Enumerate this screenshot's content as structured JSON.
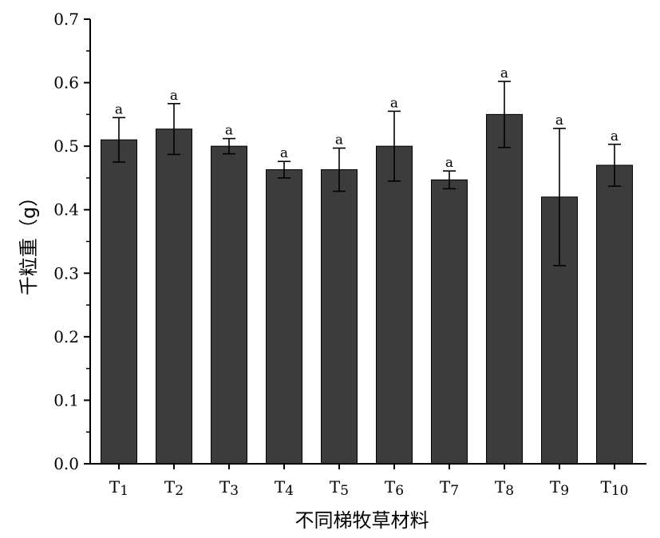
{
  "chart_data": {
    "type": "bar",
    "xlabel": "不同梯牧草材料",
    "ylabel": "千粒重（g）",
    "ylim": [
      0,
      0.7
    ],
    "ytick_step": 0.1,
    "ytick_minor_step": 0.05,
    "grid": false,
    "legend": "none",
    "bar_color": "#3c3c3c",
    "categories": [
      {
        "prefix": "T",
        "sub": "1"
      },
      {
        "prefix": "T",
        "sub": "2"
      },
      {
        "prefix": "T",
        "sub": "3"
      },
      {
        "prefix": "T",
        "sub": "4"
      },
      {
        "prefix": "T",
        "sub": "5"
      },
      {
        "prefix": "T",
        "sub": "6"
      },
      {
        "prefix": "T",
        "sub": "7"
      },
      {
        "prefix": "T",
        "sub": "8"
      },
      {
        "prefix": "T",
        "sub": "9"
      },
      {
        "prefix": "T",
        "sub": "10"
      }
    ],
    "values": [
      0.51,
      0.527,
      0.5,
      0.463,
      0.463,
      0.5,
      0.447,
      0.55,
      0.42,
      0.47
    ],
    "errors": [
      0.035,
      0.04,
      0.012,
      0.013,
      0.034,
      0.055,
      0.014,
      0.052,
      0.108,
      0.033
    ],
    "significance": [
      "a",
      "a",
      "a",
      "a",
      "a",
      "a",
      "a",
      "a",
      "a",
      "a"
    ]
  }
}
